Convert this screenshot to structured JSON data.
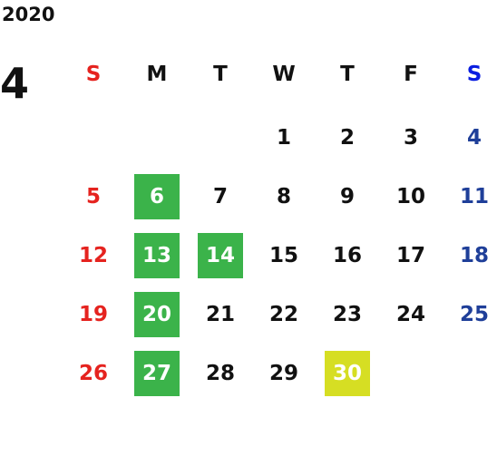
{
  "calendar": {
    "year": "2020",
    "month": "4",
    "weekdays": [
      "S",
      "M",
      "T",
      "W",
      "T",
      "F",
      "S"
    ],
    "header_colors": [
      "#e5231f",
      "#111111",
      "#111111",
      "#111111",
      "#111111",
      "#111111",
      "#0a1ee0"
    ],
    "day_colors": [
      "#e5231f",
      "#111111",
      "#111111",
      "#111111",
      "#111111",
      "#111111",
      "#1f3f99"
    ],
    "highlight_text_color": "#ffffff",
    "weeks": [
      [
        null,
        null,
        null,
        1,
        2,
        3,
        4
      ],
      [
        5,
        {
          "day": 6,
          "fill": "#3bb34a"
        },
        7,
        8,
        9,
        10,
        11
      ],
      [
        12,
        {
          "day": 13,
          "fill": "#3bb34a"
        },
        {
          "day": 14,
          "fill": "#3bb34a"
        },
        15,
        16,
        17,
        18
      ],
      [
        19,
        {
          "day": 20,
          "fill": "#3bb34a"
        },
        21,
        22,
        23,
        24,
        25
      ],
      [
        26,
        {
          "day": 27,
          "fill": "#3bb34a"
        },
        28,
        29,
        {
          "day": 30,
          "fill": "#d6de23"
        },
        null,
        null
      ]
    ]
  }
}
